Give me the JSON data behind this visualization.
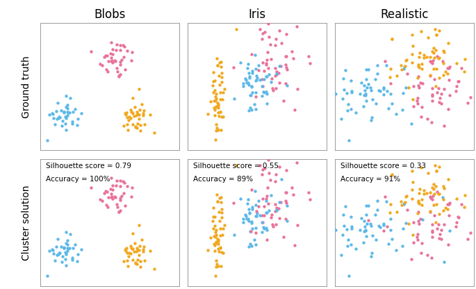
{
  "title_row": [
    "Blobs",
    "Iris",
    "Realistic"
  ],
  "row_labels": [
    "Ground truth",
    "Cluster solution"
  ],
  "colors": {
    "pink": "#E8729A",
    "blue": "#5DB8E8",
    "orange": "#F0A820"
  },
  "annotations": [
    {
      "sil": "Silhouette score = 0.79",
      "acc": "Accuracy = 100%"
    },
    {
      "sil": "Silhouette score = 0.55",
      "acc": "Accuracy = 89%"
    },
    {
      "sil": "Silhouette score = 0.33",
      "acc": "Accuracy = 91%"
    }
  ],
  "title_fontsize": 12,
  "label_fontsize": 10,
  "annotation_fontsize": 7.5,
  "dot_size": 10,
  "background": "#ffffff"
}
